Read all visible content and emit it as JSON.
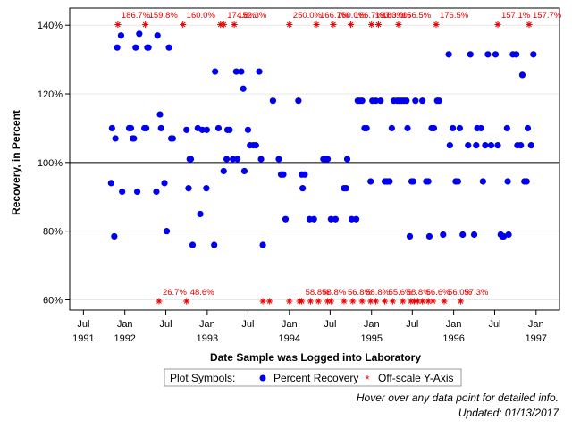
{
  "chart_data": {
    "type": "scatter",
    "xlabel": "Date Sample was Logged into Laboratory",
    "ylabel": "Recovery, in Percent",
    "x_domain": [
      "1991-05-01",
      "1997-04-15"
    ],
    "ylim": [
      57,
      145
    ],
    "reference_line": 100,
    "y_ticks": [
      60,
      80,
      100,
      120,
      140
    ],
    "y_tick_labels": [
      "60%",
      "80%",
      "100%",
      "120%",
      "140%"
    ],
    "x_ticks": [
      {
        "date": "1991-07-01",
        "label": "Jul"
      },
      {
        "date": "1992-01-01",
        "label": "Jan"
      },
      {
        "date": "1992-07-01",
        "label": "Jul"
      },
      {
        "date": "1993-01-01",
        "label": "Jan"
      },
      {
        "date": "1993-07-01",
        "label": "Jul"
      },
      {
        "date": "1994-01-01",
        "label": "Jan"
      },
      {
        "date": "1994-07-01",
        "label": "Jul"
      },
      {
        "date": "1995-01-01",
        "label": "Jan"
      },
      {
        "date": "1995-07-01",
        "label": "Jul"
      },
      {
        "date": "1996-01-01",
        "label": "Jan"
      },
      {
        "date": "1996-07-01",
        "label": "Jul"
      },
      {
        "date": "1997-01-01",
        "label": "Jan"
      }
    ],
    "x_year_labels": [
      {
        "date": "1991-07-01",
        "label": "1991"
      },
      {
        "date": "1992-01-01",
        "label": "1992"
      },
      {
        "date": "1993-01-01",
        "label": "1993"
      },
      {
        "date": "1994-01-01",
        "label": "1994"
      },
      {
        "date": "1995-01-01",
        "label": "1995"
      },
      {
        "date": "1996-01-01",
        "label": "1996"
      },
      {
        "date": "1997-01-01",
        "label": "1997"
      }
    ],
    "series": [
      {
        "name": "Percent Recovery",
        "color": "#0000ee",
        "points": [
          [
            "1991-11-01",
            94
          ],
          [
            "1991-11-05",
            110
          ],
          [
            "1991-11-15",
            78.5
          ],
          [
            "1991-11-20",
            107
          ],
          [
            "1991-11-28",
            133.5
          ],
          [
            "1991-12-15",
            137
          ],
          [
            "1991-12-20",
            91.5
          ],
          [
            "1992-01-20",
            110
          ],
          [
            "1992-01-28",
            110
          ],
          [
            "1992-02-05",
            107
          ],
          [
            "1992-02-10",
            107
          ],
          [
            "1992-02-18",
            133.5
          ],
          [
            "1992-02-25",
            91.5
          ],
          [
            "1992-03-05",
            137.5
          ],
          [
            "1992-03-28",
            110
          ],
          [
            "1992-04-05",
            110
          ],
          [
            "1992-04-10",
            133.5
          ],
          [
            "1992-04-15",
            133.5
          ],
          [
            "1992-05-20",
            91.5
          ],
          [
            "1992-05-25",
            137
          ],
          [
            "1992-06-05",
            114
          ],
          [
            "1992-06-10",
            110
          ],
          [
            "1992-06-25",
            94
          ],
          [
            "1992-07-05",
            80
          ],
          [
            "1992-07-15",
            133.5
          ],
          [
            "1992-07-25",
            107
          ],
          [
            "1992-08-01",
            107
          ],
          [
            "1992-10-01",
            109.5
          ],
          [
            "1992-10-10",
            92.5
          ],
          [
            "1992-10-15",
            101
          ],
          [
            "1992-10-20",
            101
          ],
          [
            "1992-10-28",
            76
          ],
          [
            "1992-11-20",
            110
          ],
          [
            "1992-12-01",
            85
          ],
          [
            "1992-12-10",
            109.5
          ],
          [
            "1992-12-28",
            92.5
          ],
          [
            "1992-12-30",
            109.5
          ],
          [
            "1993-02-01",
            76
          ],
          [
            "1993-02-05",
            126.5
          ],
          [
            "1993-02-20",
            110
          ],
          [
            "1993-03-15",
            97.5
          ],
          [
            "1993-03-28",
            101
          ],
          [
            "1993-04-01",
            109.5
          ],
          [
            "1993-04-10",
            109.5
          ],
          [
            "1993-04-25",
            101
          ],
          [
            "1993-05-10",
            126.5
          ],
          [
            "1993-05-15",
            101
          ],
          [
            "1993-06-01",
            126.5
          ],
          [
            "1993-06-10",
            121.5
          ],
          [
            "1993-06-15",
            97.5
          ],
          [
            "1993-07-01",
            109.5
          ],
          [
            "1993-07-10",
            105
          ],
          [
            "1993-07-25",
            105
          ],
          [
            "1993-08-05",
            105
          ],
          [
            "1993-08-20",
            126.5
          ],
          [
            "1993-08-28",
            101
          ],
          [
            "1993-09-05",
            76
          ],
          [
            "1993-10-20",
            118
          ],
          [
            "1993-11-15",
            101
          ],
          [
            "1993-11-25",
            96.5
          ],
          [
            "1993-12-05",
            96.5
          ],
          [
            "1993-12-15",
            83.5
          ],
          [
            "1994-02-10",
            118
          ],
          [
            "1994-02-25",
            96.5
          ],
          [
            "1994-03-01",
            92.5
          ],
          [
            "1994-03-10",
            96.5
          ],
          [
            "1994-04-01",
            83.5
          ],
          [
            "1994-04-20",
            83.5
          ],
          [
            "1994-06-01",
            101
          ],
          [
            "1994-06-10",
            101
          ],
          [
            "1994-06-20",
            101
          ],
          [
            "1994-07-05",
            83.5
          ],
          [
            "1994-07-25",
            83.5
          ],
          [
            "1994-09-01",
            92.5
          ],
          [
            "1994-09-10",
            92.5
          ],
          [
            "1994-09-15",
            101
          ],
          [
            "1994-10-05",
            83.5
          ],
          [
            "1994-10-25",
            83.5
          ],
          [
            "1994-11-01",
            118
          ],
          [
            "1994-11-10",
            118
          ],
          [
            "1994-11-20",
            118
          ],
          [
            "1994-12-01",
            110
          ],
          [
            "1994-12-10",
            110
          ],
          [
            "1994-12-28",
            94.5
          ],
          [
            "1995-01-05",
            118
          ],
          [
            "1995-01-20",
            118
          ],
          [
            "1995-02-10",
            118
          ],
          [
            "1995-03-01",
            94.5
          ],
          [
            "1995-03-08",
            94.5
          ],
          [
            "1995-03-15",
            94.5
          ],
          [
            "1995-03-22",
            94.5
          ],
          [
            "1995-04-01",
            110
          ],
          [
            "1995-04-10",
            118
          ],
          [
            "1995-04-25",
            118
          ],
          [
            "1995-05-05",
            118
          ],
          [
            "1995-05-15",
            118
          ],
          [
            "1995-05-25",
            118
          ],
          [
            "1995-06-05",
            118
          ],
          [
            "1995-06-10",
            110
          ],
          [
            "1995-06-20",
            78.5
          ],
          [
            "1995-06-28",
            94.5
          ],
          [
            "1995-07-05",
            94.5
          ],
          [
            "1995-07-15",
            118
          ],
          [
            "1995-08-15",
            118
          ],
          [
            "1995-09-01",
            94.5
          ],
          [
            "1995-09-10",
            94.5
          ],
          [
            "1995-09-15",
            78.5
          ],
          [
            "1995-09-25",
            110
          ],
          [
            "1995-10-05",
            110
          ],
          [
            "1995-10-20",
            118
          ],
          [
            "1995-10-28",
            118
          ],
          [
            "1995-11-15",
            79
          ],
          [
            "1995-12-10",
            131.5
          ],
          [
            "1995-12-15",
            105
          ],
          [
            "1995-12-28",
            110
          ],
          [
            "1996-01-10",
            94.5
          ],
          [
            "1996-01-20",
            94.5
          ],
          [
            "1996-01-28",
            110
          ],
          [
            "1996-02-10",
            79
          ],
          [
            "1996-03-05",
            105
          ],
          [
            "1996-03-15",
            131.5
          ],
          [
            "1996-04-01",
            79
          ],
          [
            "1996-04-10",
            105
          ],
          [
            "1996-04-15",
            110
          ],
          [
            "1996-05-01",
            110
          ],
          [
            "1996-05-10",
            94.5
          ],
          [
            "1996-05-20",
            105
          ],
          [
            "1996-06-01",
            131.5
          ],
          [
            "1996-06-15",
            105
          ],
          [
            "1996-07-05",
            131.5
          ],
          [
            "1996-07-15",
            105
          ],
          [
            "1996-07-28",
            79
          ],
          [
            "1996-08-05",
            78.5
          ],
          [
            "1996-08-10",
            78.5
          ],
          [
            "1996-08-25",
            110
          ],
          [
            "1996-09-01",
            79
          ],
          [
            "1996-08-28",
            94.5
          ],
          [
            "1996-09-20",
            131.5
          ],
          [
            "1996-10-05",
            131.5
          ],
          [
            "1996-10-10",
            105
          ],
          [
            "1996-10-25",
            105
          ],
          [
            "1996-11-01",
            125.5
          ],
          [
            "1996-11-10",
            94.5
          ],
          [
            "1996-11-20",
            94.5
          ],
          [
            "1996-11-25",
            110
          ],
          [
            "1996-12-10",
            105
          ],
          [
            "1996-12-20",
            131.5
          ]
        ]
      },
      {
        "name": "Off-scale Y-Axis",
        "color": "#ee0000",
        "points_high": [
          {
            "date": "1991-12-01",
            "label": "186.7%"
          },
          {
            "date": "1992-04-01",
            "label": "159.8%"
          },
          {
            "date": "1992-09-15",
            "label": "160.0%"
          },
          {
            "date": "1993-03-01",
            "label": ""
          },
          {
            "date": "1993-03-15",
            "label": "174.8%"
          },
          {
            "date": "1993-05-01",
            "label": "152.3%"
          },
          {
            "date": "1994-01-01",
            "label": "250.0%"
          },
          {
            "date": "1994-05-01",
            "label": "166.7%"
          },
          {
            "date": "1994-07-15",
            "label": "160.0%"
          },
          {
            "date": "1994-10-01",
            "label": "166.7%"
          },
          {
            "date": "1995-01-01",
            "label": "193.3%"
          },
          {
            "date": "1995-02-01",
            "label": "180.0%"
          },
          {
            "date": "1995-05-01",
            "label": "156.5%"
          },
          {
            "date": "1995-10-15",
            "label": "176.5%"
          },
          {
            "date": "1996-07-15",
            "label": "157.1%"
          },
          {
            "date": "1996-12-01",
            "label": "157.7%"
          }
        ],
        "points_low": [
          {
            "date": "1992-06-01",
            "label": "26.7%"
          },
          {
            "date": "1992-10-01",
            "label": "48.6%"
          },
          {
            "date": "1993-09-05",
            "label": ""
          },
          {
            "date": "1993-10-05",
            "label": ""
          },
          {
            "date": "1994-01-01",
            "label": ""
          },
          {
            "date": "1994-02-15",
            "label": ""
          },
          {
            "date": "1994-02-25",
            "label": "58.8%"
          },
          {
            "date": "1994-04-05",
            "label": ""
          },
          {
            "date": "1994-05-10",
            "label": "58.8%"
          },
          {
            "date": "1994-06-20",
            "label": ""
          },
          {
            "date": "1994-07-05",
            "label": ""
          },
          {
            "date": "1994-09-01",
            "label": "56.8%"
          },
          {
            "date": "1994-10-10",
            "label": ""
          },
          {
            "date": "1994-11-20",
            "label": "58.8%"
          },
          {
            "date": "1994-12-28",
            "label": ""
          },
          {
            "date": "1995-01-20",
            "label": ""
          },
          {
            "date": "1995-03-01",
            "label": "55.6%"
          },
          {
            "date": "1995-04-05",
            "label": ""
          },
          {
            "date": "1995-05-20",
            "label": "58.8%"
          },
          {
            "date": "1995-06-25",
            "label": ""
          },
          {
            "date": "1995-07-10",
            "label": ""
          },
          {
            "date": "1995-07-25",
            "label": ""
          },
          {
            "date": "1995-08-15",
            "label": "56.6%"
          },
          {
            "date": "1995-09-10",
            "label": ""
          },
          {
            "date": "1995-10-01",
            "label": ""
          },
          {
            "date": "1995-11-20",
            "label": "56.0%"
          },
          {
            "date": "1996-02-01",
            "label": "57.3%"
          }
        ]
      }
    ]
  },
  "legend": {
    "title": "Plot Symbols:",
    "items": [
      {
        "label": "Percent Recovery",
        "symbol": "dot"
      },
      {
        "label": "Off-scale Y-Axis",
        "symbol": "asterisk"
      }
    ]
  },
  "footnotes": {
    "hover_hint": "Hover over any data point for detailed info.",
    "updated": "Updated: 01/13/2017"
  },
  "colors": {
    "points": "#0000ee",
    "offscale": "#ee0000",
    "reference_line": "#000000",
    "gridline": "#e8e8e8"
  }
}
